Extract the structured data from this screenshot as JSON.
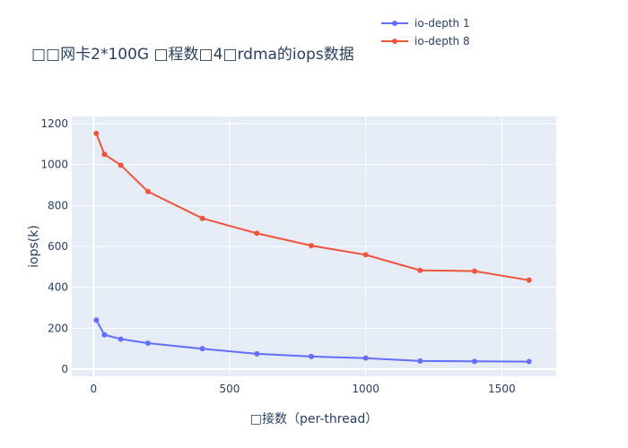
{
  "chart_data": {
    "type": "line",
    "title": "□□网卡2*100G □程数□4□rdma的iops数据",
    "xlabel": "□接数（per-thread）",
    "ylabel": "iops(k)",
    "xlim": [
      -80,
      1700
    ],
    "ylim": [
      -35,
      1235
    ],
    "xticks": [
      0,
      500,
      1000,
      1500
    ],
    "yticks": [
      0,
      200,
      400,
      600,
      800,
      1000,
      1200
    ],
    "grid": true,
    "legend_position": "top-right",
    "x": [
      10,
      40,
      100,
      200,
      400,
      600,
      800,
      1000,
      1200,
      1400,
      1600
    ],
    "series": [
      {
        "name": "io-depth 1",
        "color": "#636efa",
        "values": [
          240,
          168,
          147,
          127,
          100,
          75,
          62,
          54,
          40,
          38,
          37
        ]
      },
      {
        "name": "io-depth 8",
        "color": "#ef553b",
        "values": [
          1152,
          1050,
          997,
          868,
          737,
          664,
          604,
          559,
          483,
          479,
          435
        ]
      }
    ]
  }
}
